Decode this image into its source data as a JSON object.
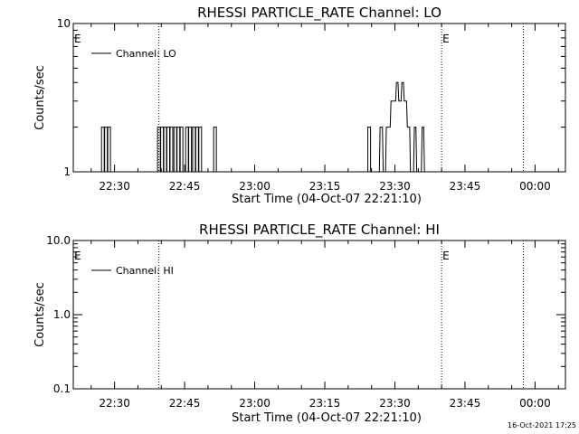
{
  "chart_data": [
    {
      "type": "line",
      "title": "RHESSI PARTICLE_RATE Channel: LO",
      "xlabel": "Start Time (04-Oct-07 22:21:10)",
      "ylabel": "Counts/sec",
      "x_unit": "time (HH:MM)",
      "xlim": [
        "22:21:10",
        "00:06:30"
      ],
      "xticks": [
        "22:30",
        "22:45",
        "23:00",
        "23:15",
        "23:30",
        "23:45",
        "00:00"
      ],
      "y_scale": "log",
      "ylim": [
        1,
        10
      ],
      "yticks": [
        "1",
        "10"
      ],
      "grid": false,
      "legend": {
        "position": "top-left",
        "entries": [
          "Channel: LO"
        ]
      },
      "event_lines": [
        {
          "x": "22:39:30",
          "label": "E"
        },
        {
          "x": "23:40:00",
          "label": "E"
        },
        {
          "x": "23:57:30",
          "label": ""
        }
      ],
      "series": [
        {
          "name": "Channel: LO",
          "baseline": 1,
          "spikes": [
            {
              "x": "22:27:30",
              "value": 2
            },
            {
              "x": "22:28:10",
              "value": 2
            },
            {
              "x": "22:28:50",
              "value": 2
            },
            {
              "x": "22:39:30",
              "value": 2
            },
            {
              "x": "22:40:10",
              "value": 2
            },
            {
              "x": "22:40:50",
              "value": 2
            },
            {
              "x": "22:41:30",
              "value": 2
            },
            {
              "x": "22:42:10",
              "value": 2
            },
            {
              "x": "22:43:00",
              "value": 2
            },
            {
              "x": "22:43:40",
              "value": 2
            },
            {
              "x": "22:44:20",
              "value": 2
            },
            {
              "x": "22:45:30",
              "value": 2
            },
            {
              "x": "22:46:10",
              "value": 2
            },
            {
              "x": "22:47:00",
              "value": 2
            },
            {
              "x": "22:47:40",
              "value": 2
            },
            {
              "x": "22:48:20",
              "value": 2
            },
            {
              "x": "22:51:30",
              "value": 2
            },
            {
              "x": "23:24:30",
              "value": 2
            }
          ],
          "profile": [
            [
              "23:26:40",
              1
            ],
            [
              "23:26:50",
              2
            ],
            [
              "23:27:20",
              2
            ],
            [
              "23:27:30",
              1
            ],
            [
              "23:28:00",
              1
            ],
            [
              "23:28:10",
              2
            ],
            [
              "23:29:00",
              2
            ],
            [
              "23:29:10",
              3
            ],
            [
              "23:30:10",
              3
            ],
            [
              "23:30:20",
              4
            ],
            [
              "23:30:40",
              4
            ],
            [
              "23:30:50",
              3
            ],
            [
              "23:31:20",
              3
            ],
            [
              "23:31:30",
              4
            ],
            [
              "23:31:50",
              4
            ],
            [
              "23:32:00",
              3
            ],
            [
              "23:32:30",
              3
            ],
            [
              "23:32:40",
              2
            ],
            [
              "23:33:10",
              2
            ],
            [
              "23:33:20",
              1
            ],
            [
              "23:34:00",
              1
            ],
            [
              "23:34:10",
              2
            ],
            [
              "23:34:30",
              2
            ],
            [
              "23:34:40",
              1
            ],
            [
              "23:35:40",
              1
            ],
            [
              "23:35:50",
              2
            ],
            [
              "23:36:10",
              2
            ],
            [
              "23:36:20",
              1
            ]
          ]
        }
      ]
    },
    {
      "type": "line",
      "title": "RHESSI PARTICLE_RATE Channel: HI",
      "xlabel": "Start Time (04-Oct-07 22:21:10)",
      "ylabel": "Counts/sec",
      "x_unit": "time (HH:MM)",
      "xlim": [
        "22:21:10",
        "00:06:30"
      ],
      "xticks": [
        "22:30",
        "22:45",
        "23:00",
        "23:15",
        "23:30",
        "23:45",
        "00:00"
      ],
      "y_scale": "log",
      "ylim": [
        0.1,
        10
      ],
      "yticks": [
        "0.1",
        "1.0",
        "10.0"
      ],
      "grid": false,
      "legend": {
        "position": "top-left",
        "entries": [
          "Channel: HI"
        ]
      },
      "event_lines": [
        {
          "x": "22:39:30",
          "label": "E"
        },
        {
          "x": "23:40:00",
          "label": "E"
        },
        {
          "x": "23:57:30",
          "label": ""
        }
      ],
      "series": [
        {
          "name": "Channel: HI",
          "spikes": [],
          "profile": []
        }
      ]
    }
  ],
  "footer": {
    "timestamp": "16-Oct-2021 17:25"
  }
}
